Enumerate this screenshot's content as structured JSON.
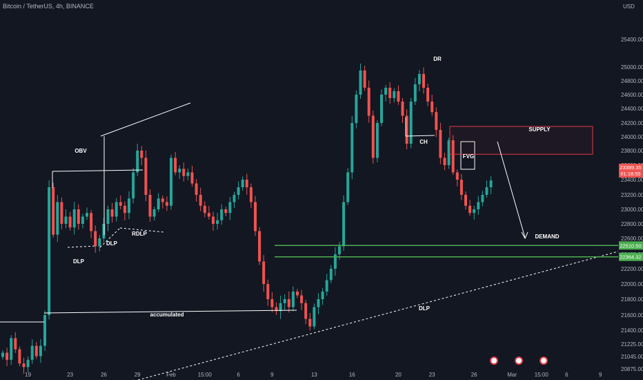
{
  "chart_data": {
    "type": "candlestick",
    "title": "Bitcoin / TetherUS, 4h, BINANCE",
    "currency": "USD",
    "y_ticks": [
      20875,
      21045,
      21225,
      21400,
      21600,
      21800,
      22000,
      22200,
      22400,
      22600,
      22800,
      23000,
      23200,
      23400,
      23600,
      23800,
      24000,
      24200,
      24400,
      24600,
      24800,
      25000,
      25400
    ],
    "y_tick_labels": [
      "20875.00",
      "21045.00",
      "21225.00",
      "21400.00",
      "21600.00",
      "21800.00",
      "22000.00",
      "22200.00",
      "22400.00",
      "22600.00",
      "22800.00",
      "23000.00",
      "23200.00",
      "23400.00",
      "23600.00",
      "23800.00",
      "24000.00",
      "24200.00",
      "24400.00",
      "24600.00",
      "24800.00",
      "25000.00",
      "25400.00"
    ],
    "x_ticks": [
      {
        "label": "19",
        "bar": 6
      },
      {
        "label": "23",
        "bar": 16
      },
      {
        "label": "26",
        "bar": 24
      },
      {
        "label": "29",
        "bar": 32
      },
      {
        "label": "Feb",
        "bar": 40
      },
      {
        "label": "15:00",
        "bar": 48
      },
      {
        "label": "6",
        "bar": 56
      },
      {
        "label": "9",
        "bar": 64
      },
      {
        "label": "13",
        "bar": 74
      },
      {
        "label": "16",
        "bar": 83
      },
      {
        "label": "20",
        "bar": 94
      },
      {
        "label": "23",
        "bar": 102
      },
      {
        "label": "26",
        "bar": 112
      },
      {
        "label": "Mar",
        "bar": 121
      },
      {
        "label": "15:00",
        "bar": 128
      },
      {
        "label": "6",
        "bar": 134
      },
      {
        "label": "9",
        "bar": 142
      }
    ],
    "closes": [
      21100,
      21000,
      21300,
      21150,
      20950,
      20900,
      21000,
      21200,
      21050,
      21200,
      21600,
      23300,
      22650,
      23100,
      22800,
      22900,
      22750,
      23000,
      22800,
      22900,
      22950,
      22700,
      22500,
      22600,
      22800,
      23000,
      22900,
      23100,
      23050,
      22950,
      23150,
      23500,
      23800,
      23700,
      23200,
      22900,
      23000,
      23150,
      23100,
      23050,
      23700,
      23500,
      23550,
      23450,
      23500,
      23350,
      23200,
      23050,
      22950,
      22900,
      22800,
      22850,
      23000,
      22950,
      23100,
      23200,
      23300,
      23400,
      23300,
      23100,
      22700,
      22300,
      22000,
      21800,
      21700,
      21650,
      21750,
      21800,
      21700,
      21900,
      21850,
      21750,
      21550,
      21450,
      21700,
      21800,
      21900,
      22050,
      22200,
      22400,
      22500,
      23100,
      23500,
      24200,
      24600,
      24950,
      24700,
      24300,
      23700,
      24200,
      24600,
      24700,
      24550,
      24650,
      24500,
      24300,
      23900,
      24500,
      24750,
      24900,
      24700,
      24500,
      24350,
      24100,
      23700,
      23600,
      23950,
      23500,
      23400,
      23200,
      23050,
      22950,
      23000,
      23100,
      23200,
      23300,
      23389
    ],
    "annotations": {
      "obv": "OBV",
      "dlp_left": "DLP",
      "dlp_mid": "DLP",
      "rdlp": "RDLP",
      "accumulated": "accumulated",
      "dlp_bottom": "DLP",
      "ch": "CH",
      "dr": "DR",
      "fvg": "FVG",
      "supply": "SUPPLY",
      "demand": "DEMAND"
    },
    "supply_zone": [
      23750,
      24150
    ],
    "demand_zone": [
      22364.32,
      22510.5
    ],
    "price_tags": {
      "current_price": "23389.35",
      "countdown": "01:18:55",
      "demand_top": "22510.50",
      "demand_bottom": "22364.32"
    },
    "colors": {
      "up": "#26a69a",
      "down": "#ef5350",
      "supply": "#e03a46",
      "demand": "#4caf50",
      "background": "#131722",
      "annotation": "#ffffff"
    }
  }
}
